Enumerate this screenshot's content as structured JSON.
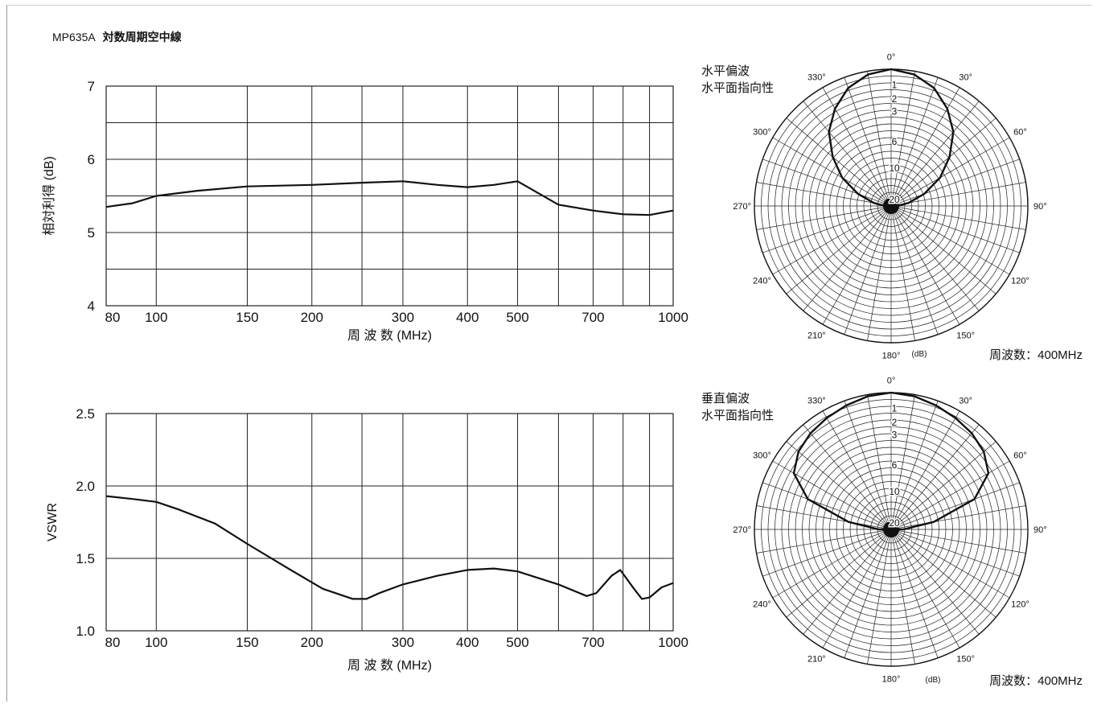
{
  "page": {
    "model": "MP635A",
    "name": "対数周期空中線"
  },
  "chart_data": [
    {
      "type": "line",
      "ylabel": "相対利得 (dB)",
      "xlabel": "周 波 数 (MHz)",
      "xscale": "log",
      "xlim": [
        80,
        1000
      ],
      "ylim": [
        4,
        7
      ],
      "grid": true,
      "x_tick_labels": [
        "80",
        "100",
        "150",
        "200",
        "300",
        "400",
        "500",
        "700",
        "1000"
      ],
      "x_tick_values": [
        80,
        100,
        150,
        200,
        300,
        400,
        500,
        700,
        1000
      ],
      "x_grid_values": [
        80,
        100,
        150,
        200,
        250,
        300,
        400,
        500,
        600,
        700,
        800,
        900,
        1000
      ],
      "y_tick_labels": [
        "4",
        "5",
        "6",
        "7"
      ],
      "y_tick_values": [
        4,
        5,
        6,
        7
      ],
      "y_grid_values": [
        4.5,
        5,
        5.5,
        6,
        6.5,
        7
      ],
      "series": [
        {
          "x": [
            80,
            90,
            100,
            120,
            150,
            200,
            250,
            300,
            350,
            400,
            450,
            500,
            600,
            700,
            800,
            900,
            1000
          ],
          "y": [
            5.35,
            5.4,
            5.5,
            5.57,
            5.63,
            5.65,
            5.68,
            5.7,
            5.65,
            5.62,
            5.65,
            5.7,
            5.38,
            5.3,
            5.25,
            5.24,
            5.3
          ]
        }
      ]
    },
    {
      "type": "line",
      "ylabel": "VSWR",
      "xlabel": "周 波 数 (MHz)",
      "xscale": "log",
      "xlim": [
        80,
        1000
      ],
      "ylim": [
        1.0,
        2.5
      ],
      "grid": true,
      "x_tick_labels": [
        "80",
        "100",
        "150",
        "200",
        "300",
        "400",
        "500",
        "700",
        "1000"
      ],
      "x_tick_values": [
        80,
        100,
        150,
        200,
        300,
        400,
        500,
        700,
        1000
      ],
      "x_grid_values": [
        80,
        100,
        150,
        200,
        250,
        300,
        400,
        500,
        600,
        700,
        800,
        900,
        1000
      ],
      "y_tick_labels": [
        "1.0",
        "1.5",
        "2.0",
        "2.5"
      ],
      "y_tick_values": [
        1.0,
        1.5,
        2.0,
        2.5
      ],
      "y_grid_values": [
        1.5,
        2.0,
        2.5
      ],
      "series": [
        {
          "x": [
            80,
            90,
            100,
            110,
            130,
            150,
            180,
            210,
            240,
            255,
            270,
            300,
            350,
            400,
            450,
            500,
            600,
            680,
            710,
            760,
            790,
            840,
            870,
            900,
            950,
            1000
          ],
          "y": [
            1.93,
            1.91,
            1.89,
            1.84,
            1.74,
            1.6,
            1.43,
            1.29,
            1.22,
            1.22,
            1.26,
            1.32,
            1.38,
            1.42,
            1.43,
            1.41,
            1.32,
            1.24,
            1.26,
            1.38,
            1.42,
            1.29,
            1.22,
            1.23,
            1.3,
            1.33
          ]
        }
      ]
    },
    {
      "type": "polar",
      "title": "水平偏波",
      "subtitle": "水平面指向性",
      "angle_labels": [
        "0°",
        "30°",
        "60°",
        "90°",
        "120°",
        "150°",
        "180°",
        "210°",
        "240°",
        "270°",
        "300°",
        "330°"
      ],
      "radial_labels": [
        "1",
        "2",
        "3",
        "6",
        "10",
        "20"
      ],
      "radial_db": [
        1,
        2,
        3,
        6,
        10,
        20
      ],
      "unit": "(dB)",
      "frequency_label": "周波数：400MHz",
      "pattern": {
        "angles": [
          0,
          10,
          20,
          30,
          40,
          50,
          60,
          70,
          80,
          90,
          100,
          110,
          120,
          130,
          140,
          150,
          160,
          170,
          180,
          190,
          200,
          210,
          220,
          230,
          240,
          250,
          260,
          270,
          280,
          290,
          300,
          310,
          320,
          330,
          340,
          350
        ],
        "attenuation_db": [
          0,
          0.2,
          0.7,
          1.6,
          2.8,
          4.7,
          7.0,
          10.5,
          15,
          20,
          25,
          25,
          25,
          25,
          25,
          25,
          25,
          25,
          25,
          25,
          25,
          25,
          25,
          25,
          25,
          25,
          25,
          20,
          15,
          10.5,
          7.0,
          4.7,
          2.8,
          1.6,
          0.7,
          0.2
        ]
      }
    },
    {
      "type": "polar",
      "title": "垂直偏波",
      "subtitle": "水平面指向性",
      "angle_labels": [
        "0°",
        "30°",
        "60°",
        "90°",
        "120°",
        "150°",
        "180°",
        "210°",
        "240°",
        "270°",
        "300°",
        "330°"
      ],
      "radial_labels": [
        "1",
        "2",
        "3",
        "6",
        "10",
        "20"
      ],
      "radial_db": [
        1,
        2,
        3,
        6,
        10,
        20
      ],
      "unit": "(dB)",
      "frequency_label": "周波数：400MHz",
      "pattern": {
        "angles": [
          0,
          10,
          20,
          30,
          40,
          50,
          60,
          70,
          80,
          90,
          100,
          110,
          120,
          130,
          140,
          150,
          160,
          170,
          180,
          190,
          200,
          210,
          220,
          230,
          240,
          250,
          260,
          270,
          280,
          290,
          300,
          310,
          320,
          330,
          340,
          350
        ],
        "attenuation_db": [
          0,
          0.1,
          0.3,
          0.5,
          0.7,
          1.0,
          1.6,
          3.5,
          9,
          17,
          25,
          25,
          25,
          25,
          25,
          25,
          25,
          25,
          25,
          25,
          25,
          25,
          25,
          25,
          25,
          25,
          25,
          17,
          9,
          3.5,
          1.6,
          1.0,
          0.7,
          0.5,
          0.3,
          0.1
        ]
      }
    }
  ]
}
